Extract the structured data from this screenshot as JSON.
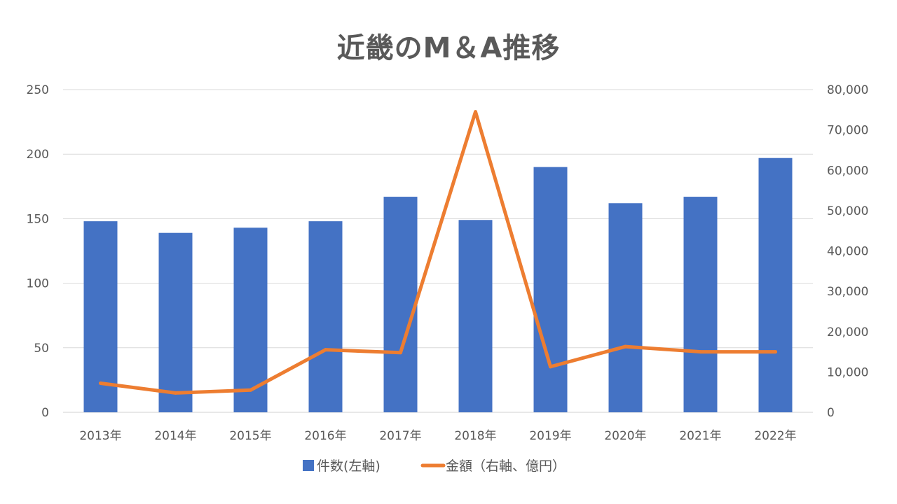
{
  "chart_data": {
    "type": "bar+line",
    "title": "近畿のM＆A推移",
    "categories": [
      "2013年",
      "2014年",
      "2015年",
      "2016年",
      "2017年",
      "2018年",
      "2019年",
      "2020年",
      "2021年",
      "2022年"
    ],
    "series": [
      {
        "name": "件数(左軸)",
        "type": "bar",
        "axis": "left",
        "color": "#4472C4",
        "values": [
          148,
          139,
          143,
          148,
          167,
          149,
          190,
          162,
          167,
          197
        ]
      },
      {
        "name": "金額（右軸、億円）",
        "type": "line",
        "axis": "right",
        "color": "#ED7D31",
        "values": [
          7200,
          4800,
          5500,
          15500,
          14800,
          74500,
          11300,
          16300,
          15000,
          15000
        ]
      }
    ],
    "y_left": {
      "range": [
        0,
        250
      ],
      "ticks": [
        0,
        50,
        100,
        150,
        200,
        250
      ],
      "tick_labels": [
        "0",
        "50",
        "100",
        "150",
        "200",
        "250"
      ]
    },
    "y_right": {
      "range": [
        0,
        80000
      ],
      "ticks": [
        0,
        10000,
        20000,
        30000,
        40000,
        50000,
        60000,
        70000,
        80000
      ],
      "tick_labels": [
        "0",
        "10,000",
        "20,000",
        "30,000",
        "40,000",
        "50,000",
        "60,000",
        "70,000",
        "80,000"
      ]
    },
    "grid": true,
    "legend_position": "bottom"
  }
}
